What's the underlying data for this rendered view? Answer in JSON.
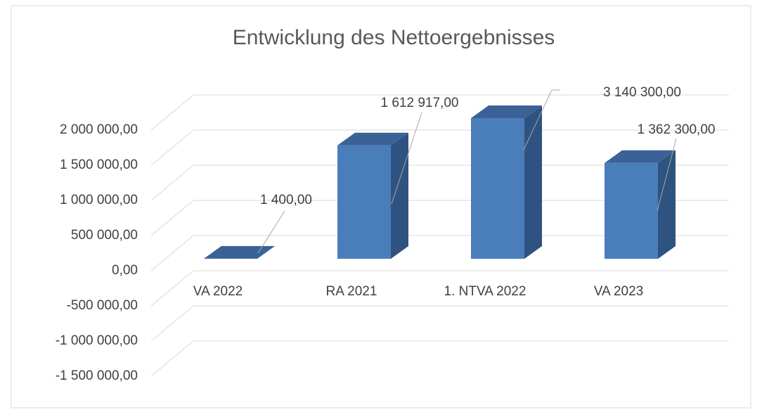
{
  "chart_data": {
    "type": "bar3d",
    "title": "Entwicklung des Nettoergebnisses",
    "categories": [
      "VA 2022",
      "RA 2021",
      "1. NTVA 2022",
      "VA 2023"
    ],
    "values": [
      1400,
      1612917,
      3140300,
      1362300
    ],
    "value_labels": [
      "1 400,00",
      "1 612 917,00",
      "3 140 300,00",
      "1 362 300,00"
    ],
    "color": "#4a7ebb",
    "ylim": [
      -1500000,
      2000000
    ],
    "yticks": [
      {
        "value": 2000000,
        "label": "2 000 000,00"
      },
      {
        "value": 1500000,
        "label": "1 500 000,00"
      },
      {
        "value": 1000000,
        "label": "1 000 000,00"
      },
      {
        "value": 500000,
        "label": "500 000,00"
      },
      {
        "value": 0,
        "label": "0,00"
      },
      {
        "value": -500000,
        "label": "-500 000,00"
      },
      {
        "value": -1000000,
        "label": "-1 000 000,00"
      },
      {
        "value": -1500000,
        "label": "-1 500 000,00"
      }
    ],
    "grid": true
  }
}
